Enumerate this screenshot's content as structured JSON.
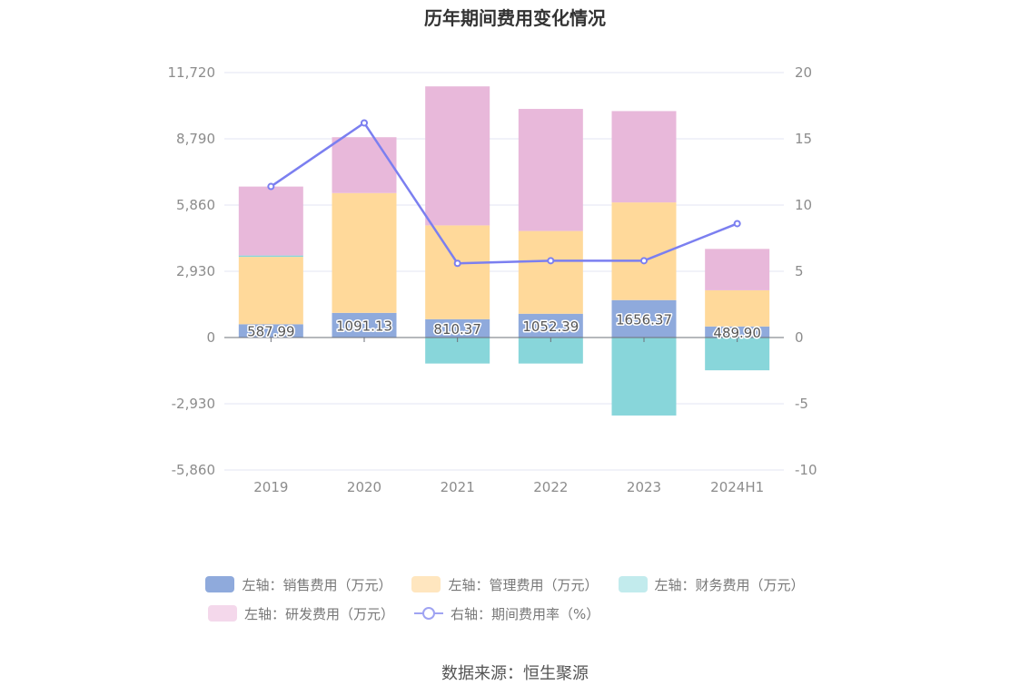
{
  "chart_data": {
    "type": "bar",
    "title": "历年期间费用变化情况",
    "categories": [
      "2019",
      "2020",
      "2021",
      "2022",
      "2023",
      "2024H1"
    ],
    "left_axis": {
      "min": -5860,
      "max": 11720,
      "ticks": [
        "11,720",
        "8,790",
        "5,860",
        "2,930",
        "0",
        "-2,930",
        "-5,860"
      ]
    },
    "right_axis": {
      "min": -10,
      "max": 20,
      "ticks": [
        "20",
        "15",
        "10",
        "5",
        "0",
        "-5",
        "-10"
      ]
    },
    "series": [
      {
        "name": "左轴：销售费用（万元）",
        "axis": "left",
        "stacked": true,
        "color": "#8faadc",
        "values": [
          587.99,
          1091.13,
          810.37,
          1052.39,
          1656.37,
          489.9
        ],
        "labels": [
          "587.99",
          "1091.13",
          "810.37",
          "1052.39",
          "1656.37",
          "489.90"
        ]
      },
      {
        "name": "左轴：管理费用（万元）",
        "axis": "left",
        "stacked": true,
        "color": "#ffd99a",
        "values": [
          2980,
          5300,
          4150,
          3660,
          4320,
          1600
        ]
      },
      {
        "name": "左轴：财务费用（万元）",
        "axis": "left",
        "stacked": true,
        "color": "#88d6da",
        "values": [
          60,
          -5,
          -1150,
          -1150,
          -3450,
          -1450
        ]
      },
      {
        "name": "左轴：研发费用（万元）",
        "axis": "left",
        "stacked": true,
        "color": "#e8b8da",
        "values": [
          3050,
          2470,
          6150,
          5400,
          4040,
          1830
        ]
      },
      {
        "name": "右轴：期间费用率（%）",
        "axis": "right",
        "type": "line",
        "color": "#7b7ff0",
        "values": [
          11.4,
          16.2,
          5.6,
          5.8,
          5.8,
          8.6
        ]
      }
    ],
    "legend_position": "bottom",
    "grid": true
  },
  "source": "数据来源：恒生聚源"
}
